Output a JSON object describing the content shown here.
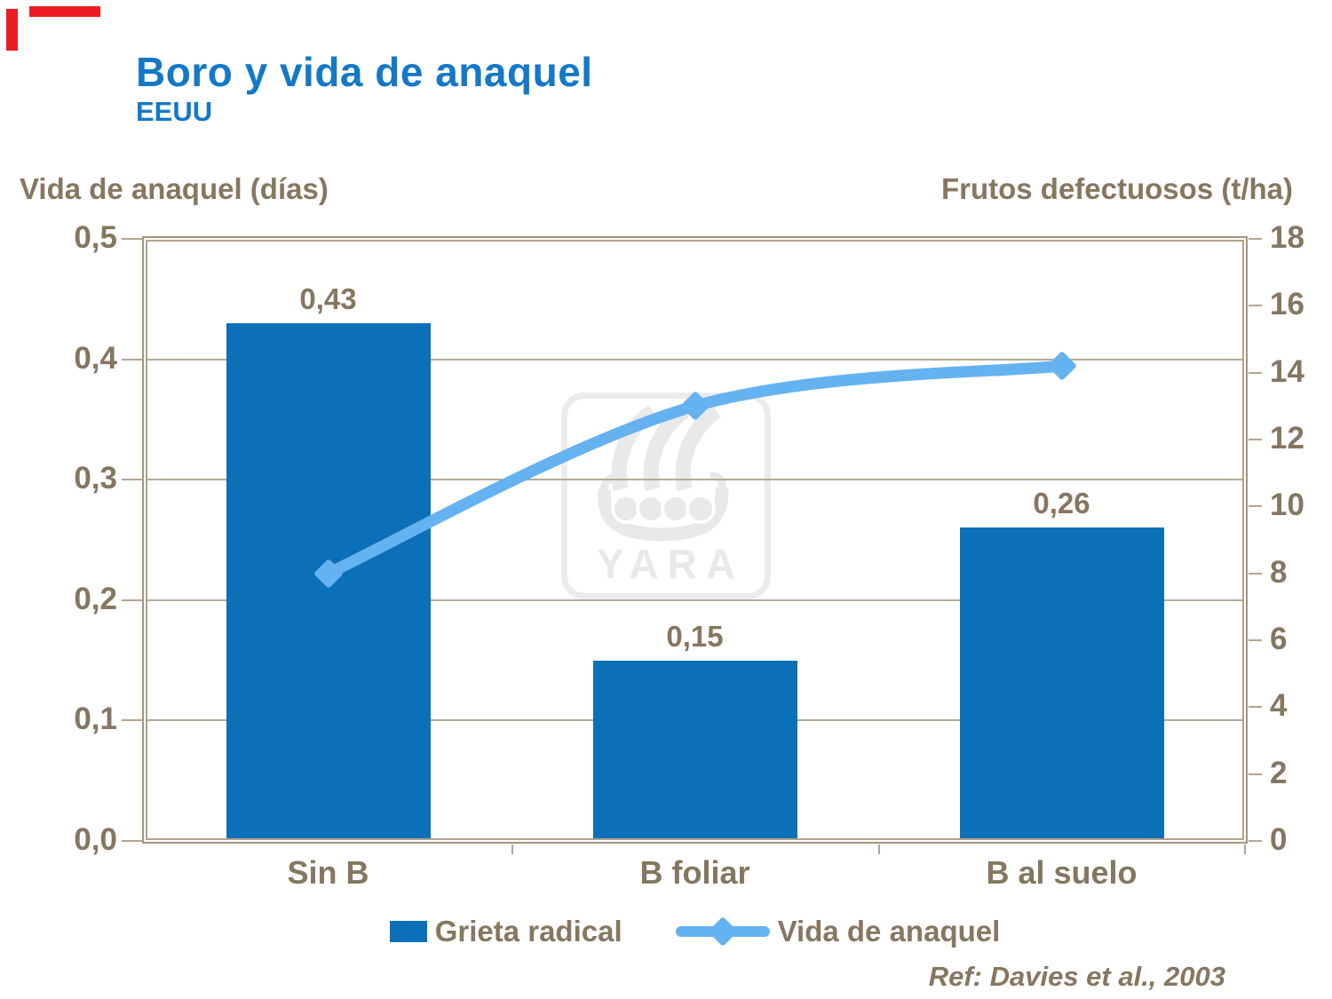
{
  "slide": {
    "title": "Boro y vida de anaquel",
    "subtitle": "EEUU",
    "reference": "Ref: Davies et al., 2003",
    "watermark_text": "YARA"
  },
  "chart_data": {
    "type": "combo-bar-line",
    "categories": [
      "Sin B",
      "B foliar",
      "B al suelo"
    ],
    "series": [
      {
        "name": "Grieta radical",
        "type": "bar",
        "axis": "left",
        "values": [
          0.43,
          0.15,
          0.26
        ],
        "value_labels": [
          "0,43",
          "0,15",
          "0,26"
        ],
        "color": "#0b70b8"
      },
      {
        "name": "Vida de anaquel",
        "type": "line",
        "axis": "right",
        "values": [
          8,
          13,
          14.2
        ],
        "marker": "diamond",
        "color": "#65b2f0"
      }
    ],
    "left_axis": {
      "title": "Vida de anaquel (días)",
      "min": 0,
      "max": 0.5,
      "step": 0.1,
      "tick_labels": [
        "0,0",
        "0,1",
        "0,2",
        "0,3",
        "0,4",
        "0,5"
      ]
    },
    "right_axis": {
      "title": "Frutos defectuosos (t/ha)",
      "min": 0,
      "max": 18,
      "step": 2,
      "tick_labels": [
        "0",
        "2",
        "4",
        "6",
        "8",
        "10",
        "12",
        "14",
        "16",
        "18"
      ]
    },
    "legend_position": "bottom",
    "grid": true
  },
  "colors": {
    "title_blue": "#1478c8",
    "text_brown": "#877660",
    "bar_blue": "#0b70b8",
    "line_blue": "#65b2f0",
    "frame_tan": "#a3947d",
    "gridline": "#b4aa99",
    "corner_red": "#ed1c24",
    "watermark_gray": "#e9e9e9"
  }
}
